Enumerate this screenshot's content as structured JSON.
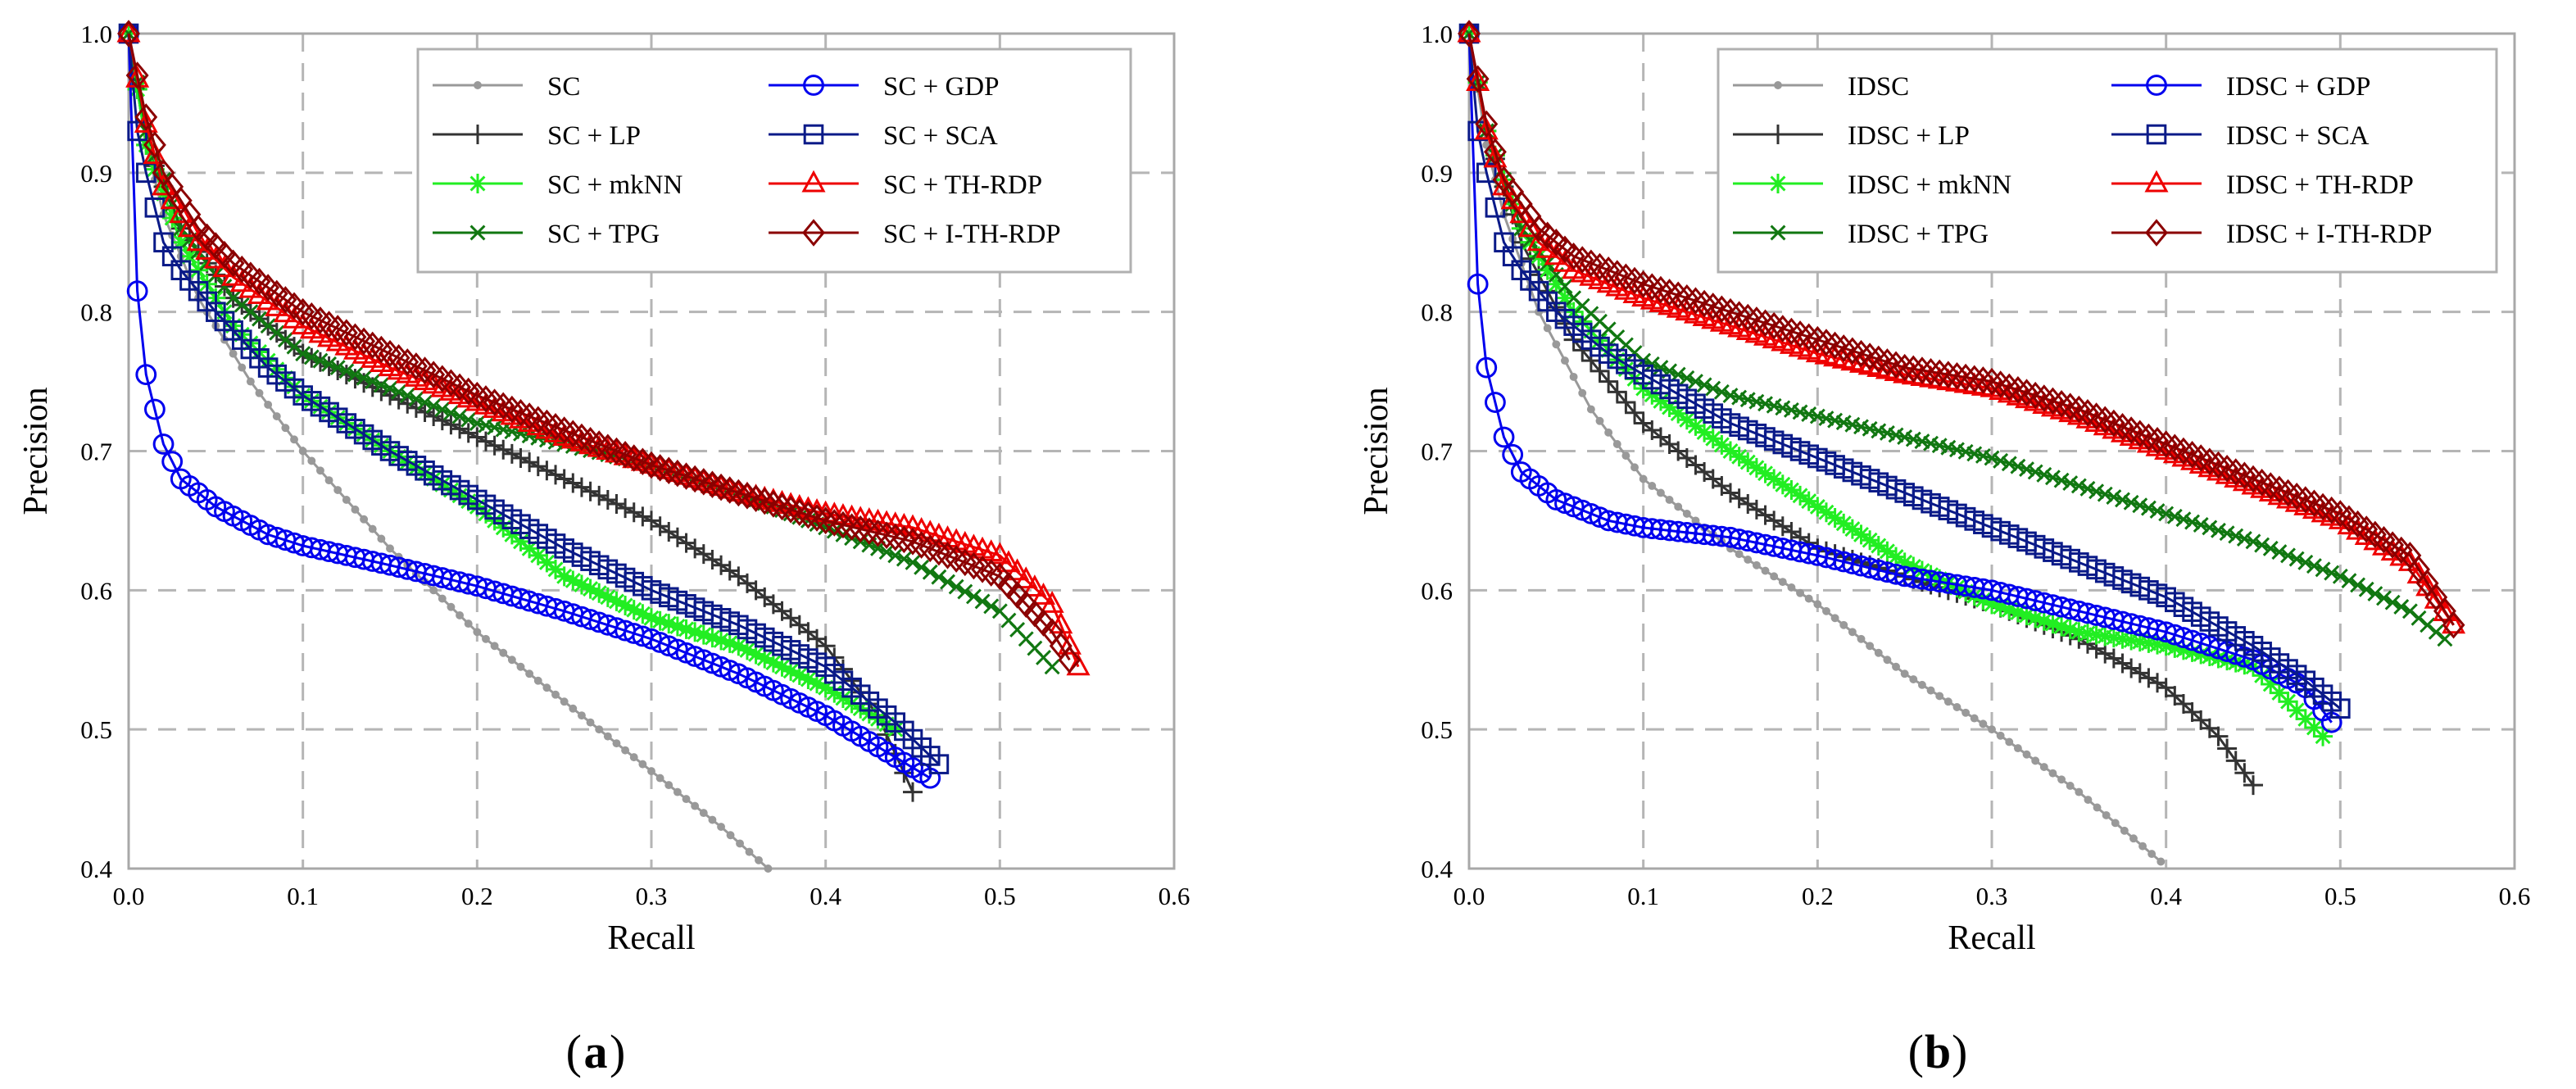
{
  "chart_data": [
    {
      "id": "a",
      "type": "line",
      "panel_label": "a",
      "xlabel": "Recall",
      "ylabel": "Precision",
      "xlim": [
        0,
        0.6
      ],
      "ylim": [
        0.4,
        1.0
      ],
      "xticks": [
        "0.0",
        "0.1",
        "0.2",
        "0.3",
        "0.4",
        "0.5",
        "0.6"
      ],
      "yticks": [
        "0.4",
        "0.5",
        "0.6",
        "0.7",
        "0.8",
        "0.9",
        "1.0"
      ],
      "legend_position": "top-right",
      "series": [
        {
          "name": "SC",
          "color": "#999999",
          "marker": "dot",
          "x": [
            0,
            0.01,
            0.02,
            0.04,
            0.07,
            0.1,
            0.15,
            0.2,
            0.25,
            0.3,
            0.34,
            0.367
          ],
          "y": [
            1.0,
            0.92,
            0.87,
            0.81,
            0.75,
            0.7,
            0.63,
            0.57,
            0.52,
            0.47,
            0.43,
            0.4
          ]
        },
        {
          "name": "SC + LP",
          "color": "#333333",
          "marker": "plus",
          "x": [
            0,
            0.01,
            0.03,
            0.06,
            0.1,
            0.15,
            0.2,
            0.25,
            0.3,
            0.35,
            0.4,
            0.43,
            0.45
          ],
          "y": [
            1.0,
            0.92,
            0.86,
            0.81,
            0.77,
            0.74,
            0.71,
            0.68,
            0.65,
            0.61,
            0.56,
            0.51,
            0.455
          ]
        },
        {
          "name": "SC + mkNN",
          "color": "#22ee22",
          "marker": "star",
          "x": [
            0,
            0.01,
            0.03,
            0.06,
            0.1,
            0.15,
            0.2,
            0.25,
            0.3,
            0.35,
            0.4,
            0.44
          ],
          "y": [
            1.0,
            0.92,
            0.85,
            0.79,
            0.74,
            0.7,
            0.66,
            0.61,
            0.58,
            0.56,
            0.53,
            0.5
          ]
        },
        {
          "name": "SC + TPG",
          "color": "#117711",
          "marker": "x",
          "x": [
            0,
            0.01,
            0.03,
            0.06,
            0.1,
            0.15,
            0.2,
            0.25,
            0.3,
            0.35,
            0.4,
            0.45,
            0.5,
            0.53
          ],
          "y": [
            1.0,
            0.93,
            0.86,
            0.81,
            0.77,
            0.745,
            0.72,
            0.705,
            0.69,
            0.67,
            0.645,
            0.62,
            0.585,
            0.545
          ]
        },
        {
          "name": "SC + GDP",
          "color": "#0000ee",
          "marker": "circle",
          "x": [
            0,
            0.005,
            0.01,
            0.02,
            0.03,
            0.05,
            0.08,
            0.1,
            0.15,
            0.2,
            0.25,
            0.3,
            0.35,
            0.4,
            0.44,
            0.46
          ],
          "y": [
            1.0,
            0.815,
            0.755,
            0.705,
            0.68,
            0.66,
            0.64,
            0.632,
            0.618,
            0.603,
            0.585,
            0.565,
            0.54,
            0.51,
            0.48,
            0.465
          ]
        },
        {
          "name": "SC + SCA",
          "color": "#0a1a88",
          "marker": "square",
          "x": [
            0,
            0.005,
            0.01,
            0.02,
            0.03,
            0.05,
            0.08,
            0.1,
            0.15,
            0.2,
            0.25,
            0.3,
            0.35,
            0.4,
            0.44,
            0.465
          ],
          "y": [
            1.0,
            0.93,
            0.9,
            0.85,
            0.83,
            0.8,
            0.76,
            0.74,
            0.7,
            0.665,
            0.63,
            0.6,
            0.575,
            0.545,
            0.505,
            0.475
          ]
        },
        {
          "name": "SC + TH-RDP",
          "color": "#ee0000",
          "marker": "triangle",
          "x": [
            0,
            0.01,
            0.02,
            0.04,
            0.06,
            0.1,
            0.15,
            0.2,
            0.25,
            0.3,
            0.35,
            0.4,
            0.45,
            0.5,
            0.53,
            0.545
          ],
          "y": [
            1.0,
            0.935,
            0.89,
            0.85,
            0.825,
            0.79,
            0.76,
            0.735,
            0.71,
            0.69,
            0.67,
            0.655,
            0.645,
            0.625,
            0.59,
            0.545
          ]
        },
        {
          "name": "SC + I-TH-RDP",
          "color": "#8b0000",
          "marker": "diamond",
          "x": [
            0,
            0.01,
            0.02,
            0.04,
            0.06,
            0.1,
            0.15,
            0.2,
            0.25,
            0.3,
            0.35,
            0.4,
            0.45,
            0.5,
            0.53,
            0.54
          ],
          "y": [
            1.0,
            0.94,
            0.9,
            0.86,
            0.835,
            0.8,
            0.77,
            0.74,
            0.715,
            0.69,
            0.67,
            0.65,
            0.635,
            0.61,
            0.57,
            0.55
          ]
        }
      ]
    },
    {
      "id": "b",
      "type": "line",
      "panel_label": "b",
      "xlabel": "Recall",
      "ylabel": "Precision",
      "xlim": [
        0,
        0.6
      ],
      "ylim": [
        0.4,
        1.0
      ],
      "xticks": [
        "0.0",
        "0.1",
        "0.2",
        "0.3",
        "0.4",
        "0.5",
        "0.6"
      ],
      "yticks": [
        "0.4",
        "0.5",
        "0.6",
        "0.7",
        "0.8",
        "0.9",
        "1.0"
      ],
      "legend_position": "top",
      "series": [
        {
          "name": "IDSC",
          "color": "#999999",
          "marker": "dot",
          "x": [
            0,
            0.01,
            0.02,
            0.04,
            0.07,
            0.1,
            0.15,
            0.2,
            0.25,
            0.3,
            0.35,
            0.397
          ],
          "y": [
            1.0,
            0.92,
            0.87,
            0.8,
            0.73,
            0.68,
            0.63,
            0.59,
            0.54,
            0.5,
            0.455,
            0.405
          ]
        },
        {
          "name": "IDSC + LP",
          "color": "#333333",
          "marker": "plus",
          "x": [
            0,
            0.01,
            0.03,
            0.06,
            0.1,
            0.15,
            0.2,
            0.25,
            0.3,
            0.35,
            0.4,
            0.43,
            0.45
          ],
          "y": [
            1.0,
            0.93,
            0.85,
            0.78,
            0.72,
            0.67,
            0.63,
            0.61,
            0.59,
            0.565,
            0.53,
            0.495,
            0.46
          ]
        },
        {
          "name": "IDSC + mkNN",
          "color": "#22ee22",
          "marker": "star",
          "x": [
            0,
            0.01,
            0.03,
            0.06,
            0.1,
            0.15,
            0.2,
            0.25,
            0.3,
            0.35,
            0.4,
            0.45,
            0.49
          ],
          "y": [
            1.0,
            0.93,
            0.86,
            0.8,
            0.745,
            0.7,
            0.66,
            0.62,
            0.59,
            0.57,
            0.56,
            0.545,
            0.495
          ]
        },
        {
          "name": "IDSC + TPG",
          "color": "#117711",
          "marker": "x",
          "x": [
            0,
            0.01,
            0.03,
            0.06,
            0.1,
            0.15,
            0.2,
            0.25,
            0.3,
            0.35,
            0.4,
            0.45,
            0.5,
            0.54,
            0.56
          ],
          "y": [
            1.0,
            0.93,
            0.86,
            0.81,
            0.765,
            0.74,
            0.725,
            0.71,
            0.695,
            0.675,
            0.655,
            0.635,
            0.61,
            0.585,
            0.565
          ]
        },
        {
          "name": "IDSC + GDP",
          "color": "#0000ee",
          "marker": "circle",
          "x": [
            0,
            0.005,
            0.01,
            0.02,
            0.03,
            0.05,
            0.08,
            0.1,
            0.15,
            0.2,
            0.25,
            0.3,
            0.35,
            0.4,
            0.45,
            0.48,
            0.495
          ],
          "y": [
            1.0,
            0.82,
            0.76,
            0.71,
            0.685,
            0.665,
            0.65,
            0.645,
            0.638,
            0.625,
            0.61,
            0.6,
            0.585,
            0.57,
            0.55,
            0.53,
            0.505
          ]
        },
        {
          "name": "IDSC + SCA",
          "color": "#0a1a88",
          "marker": "square",
          "x": [
            0,
            0.005,
            0.01,
            0.02,
            0.03,
            0.05,
            0.08,
            0.1,
            0.15,
            0.2,
            0.25,
            0.3,
            0.35,
            0.4,
            0.45,
            0.48,
            0.5
          ],
          "y": [
            1.0,
            0.93,
            0.9,
            0.85,
            0.83,
            0.8,
            0.77,
            0.755,
            0.72,
            0.695,
            0.67,
            0.645,
            0.62,
            0.595,
            0.56,
            0.535,
            0.515
          ]
        },
        {
          "name": "IDSC + TH-RDP",
          "color": "#ee0000",
          "marker": "triangle",
          "x": [
            0,
            0.01,
            0.02,
            0.04,
            0.06,
            0.1,
            0.15,
            0.2,
            0.25,
            0.3,
            0.35,
            0.4,
            0.45,
            0.5,
            0.54,
            0.565
          ],
          "y": [
            1.0,
            0.93,
            0.89,
            0.85,
            0.83,
            0.81,
            0.79,
            0.77,
            0.755,
            0.745,
            0.725,
            0.7,
            0.675,
            0.65,
            0.62,
            0.575
          ]
        },
        {
          "name": "IDSC + I-TH-RDP",
          "color": "#8b0000",
          "marker": "diamond",
          "x": [
            0,
            0.01,
            0.02,
            0.04,
            0.06,
            0.1,
            0.15,
            0.2,
            0.25,
            0.3,
            0.35,
            0.4,
            0.45,
            0.5,
            0.54,
            0.565
          ],
          "y": [
            1.0,
            0.935,
            0.895,
            0.86,
            0.84,
            0.82,
            0.8,
            0.78,
            0.76,
            0.75,
            0.73,
            0.705,
            0.68,
            0.655,
            0.625,
            0.575
          ]
        }
      ]
    }
  ]
}
